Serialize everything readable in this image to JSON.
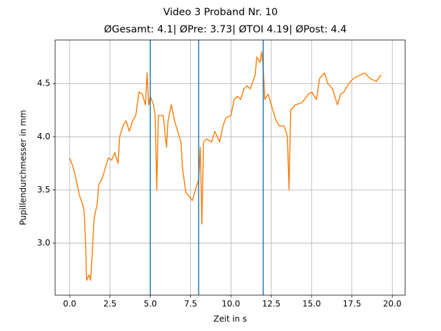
{
  "chart_data": {
    "type": "line",
    "title": "Video 3 Proband Nr. 10",
    "subtitle": "ØGesamt: 4.1| ØPre: 3.73| ØTOI 4.19| ØPost: 4.4",
    "xlabel": "Zeit in s",
    "ylabel": "Pupillendurchmesser in mm",
    "x": [
      0.0,
      0.2,
      0.4,
      0.6,
      0.8,
      0.9,
      1.0,
      1.05,
      1.2,
      1.3,
      1.4,
      1.5,
      1.6,
      1.7,
      1.8,
      2.0,
      2.2,
      2.4,
      2.6,
      2.8,
      3.0,
      3.1,
      3.3,
      3.5,
      3.7,
      3.9,
      4.1,
      4.3,
      4.5,
      4.7,
      4.8,
      4.9,
      5.0,
      5.2,
      5.3,
      5.4,
      5.5,
      5.8,
      6.0,
      6.1,
      6.3,
      6.5,
      6.7,
      6.9,
      7.0,
      7.2,
      7.5,
      7.6,
      7.8,
      8.0,
      8.1,
      8.2,
      8.3,
      8.5,
      8.8,
      9.0,
      9.3,
      9.5,
      9.7,
      10.0,
      10.2,
      10.4,
      10.6,
      10.8,
      11.0,
      11.2,
      11.5,
      11.6,
      11.8,
      11.9,
      12.0,
      12.1,
      12.3,
      12.5,
      12.8,
      13.0,
      13.3,
      13.5,
      13.6,
      13.7,
      14.0,
      14.4,
      14.8,
      15.0,
      15.3,
      15.5,
      15.8,
      16.0,
      16.3,
      16.6,
      16.8,
      17.0,
      17.3,
      17.6,
      18.0,
      18.3,
      18.6,
      19.0,
      19.3
    ],
    "series": [
      {
        "color": "#ff7f0e",
        "values": [
          3.8,
          3.72,
          3.6,
          3.45,
          3.37,
          3.3,
          2.95,
          2.65,
          2.7,
          2.65,
          2.9,
          3.2,
          3.3,
          3.35,
          3.55,
          3.6,
          3.7,
          3.8,
          3.78,
          3.85,
          3.75,
          4.0,
          4.1,
          4.15,
          4.05,
          4.15,
          4.2,
          4.42,
          4.4,
          4.3,
          4.6,
          4.3,
          4.38,
          4.3,
          4.2,
          3.5,
          4.2,
          4.2,
          3.9,
          4.15,
          4.3,
          4.15,
          4.05,
          3.95,
          3.7,
          3.48,
          3.42,
          3.4,
          3.5,
          3.6,
          3.9,
          3.18,
          3.95,
          3.98,
          3.95,
          4.05,
          3.95,
          4.1,
          4.18,
          4.2,
          4.35,
          4.38,
          4.35,
          4.45,
          4.48,
          4.45,
          4.58,
          4.75,
          4.7,
          4.8,
          4.65,
          4.35,
          4.4,
          4.3,
          4.15,
          4.1,
          4.1,
          4.0,
          3.5,
          4.25,
          4.3,
          4.32,
          4.4,
          4.42,
          4.35,
          4.55,
          4.6,
          4.5,
          4.45,
          4.3,
          4.4,
          4.42,
          4.5,
          4.55,
          4.58,
          4.6,
          4.55,
          4.52,
          4.58
        ]
      }
    ],
    "vlines": {
      "color": "#1f77b4",
      "x": [
        5,
        8,
        12
      ]
    },
    "xlim": [
      -0.9,
      20.8
    ],
    "ylim": [
      2.51,
      4.91
    ],
    "xticks": [
      {
        "value": 0,
        "label": "0.0"
      },
      {
        "value": 2.5,
        "label": "2.5"
      },
      {
        "value": 5,
        "label": "5.0"
      },
      {
        "value": 7.5,
        "label": "7.5"
      },
      {
        "value": 10,
        "label": "10.0"
      },
      {
        "value": 12.5,
        "label": "12.5"
      },
      {
        "value": 15,
        "label": "15.0"
      },
      {
        "value": 17.5,
        "label": "17.5"
      },
      {
        "value": 20,
        "label": "20.0"
      }
    ],
    "yticks": [
      {
        "value": 3,
        "label": "3.0"
      },
      {
        "value": 3.5,
        "label": "3.5"
      },
      {
        "value": 4,
        "label": "4.0"
      },
      {
        "value": 4.5,
        "label": "4.5"
      }
    ],
    "grid": true
  }
}
